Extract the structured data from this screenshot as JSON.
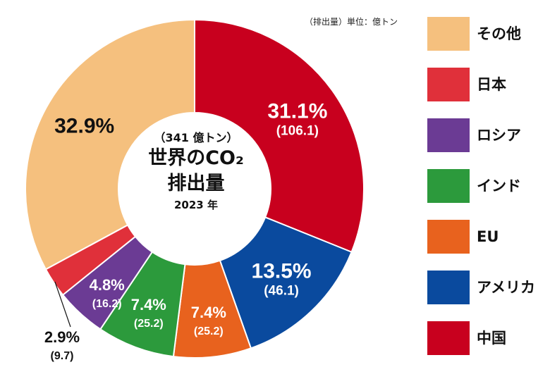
{
  "chart_data": {
    "type": "pie",
    "title": "世界のCO₂排出量",
    "subtitle": "2023 年",
    "total_label": "（341 億トン）",
    "unit_note": "（排出量）単位：億トン",
    "slices": [
      {
        "label": "中国",
        "percent": 31.1,
        "percent_text": "31.1%",
        "value": 106.1,
        "value_text": "(106.1)",
        "color": "#c8001e"
      },
      {
        "label": "アメリカ",
        "percent": 13.5,
        "percent_text": "13.5%",
        "value": 46.1,
        "value_text": "(46.1)",
        "color": "#0a4a9e"
      },
      {
        "label": "EU",
        "percent": 7.4,
        "percent_text": "7.4%",
        "value": 25.2,
        "value_text": "(25.2)",
        "color": "#e8621e"
      },
      {
        "label": "インド",
        "percent": 7.4,
        "percent_text": "7.4%",
        "value": 25.2,
        "value_text": "(25.2)",
        "color": "#2c9a3c"
      },
      {
        "label": "ロシア",
        "percent": 4.8,
        "percent_text": "4.8%",
        "value": 16.2,
        "value_text": "(16.2)",
        "color": "#6b3b94"
      },
      {
        "label": "日本",
        "percent": 2.9,
        "percent_text": "2.9%",
        "value": 9.7,
        "value_text": "(9.7)",
        "color": "#e0303a"
      },
      {
        "label": "その他",
        "percent": 32.9,
        "percent_text": "32.9%",
        "value": null,
        "value_text": "",
        "color": "#f5c07e"
      }
    ],
    "legend": {
      "placement": "right",
      "order": [
        "その他",
        "日本",
        "ロシア",
        "インド",
        "EU",
        "アメリカ",
        "中国"
      ]
    }
  },
  "center": {
    "total": "（341 億トン）",
    "title_line1": "世界のCO₂",
    "title_line2": "排出量",
    "year": "2023 年"
  },
  "unit_note": "（排出量）単位：億トン"
}
